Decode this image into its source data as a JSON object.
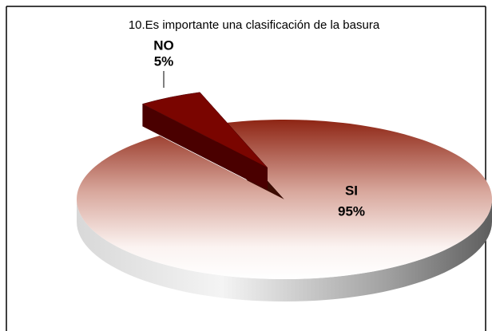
{
  "chart_data": {
    "type": "pie",
    "title": "10.Es importante una clasificación de la basura",
    "categories": [
      "SI",
      "NO"
    ],
    "values": [
      95,
      5
    ],
    "value_labels": [
      "95%",
      "5%"
    ],
    "colors": [
      "#9a2e1e",
      "#7a0500"
    ],
    "exploded": [
      "NO"
    ]
  }
}
